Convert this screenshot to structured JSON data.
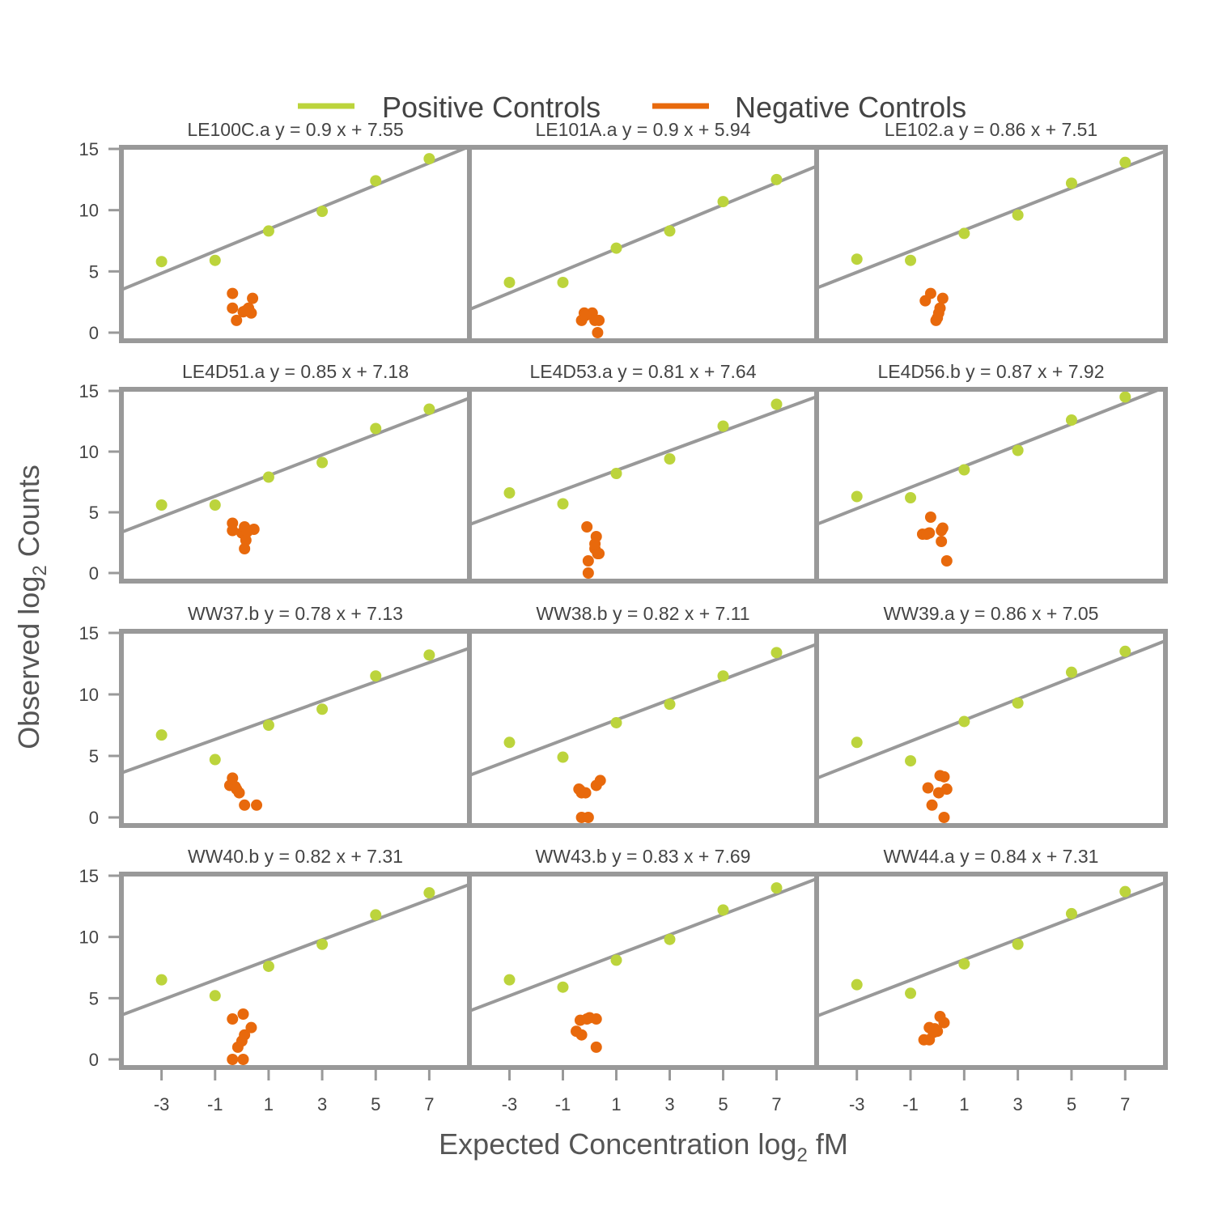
{
  "legend": {
    "positive_label": "Positive Controls",
    "negative_label": "Negative Controls"
  },
  "axes": {
    "xlabel_main": "Expected Concentration log",
    "xlabel_sub": "2",
    "xlabel_tail": " fM",
    "ylabel_main": "Observed log",
    "ylabel_sub": "2",
    "ylabel_tail": " Counts"
  },
  "colors": {
    "positive": "#bcd43c",
    "negative": "#e8690c",
    "line": "#999999",
    "frame": "#999999"
  },
  "chart_data": {
    "type": "scatter",
    "x_ticks": [
      -3,
      -1,
      1,
      3,
      5,
      7
    ],
    "x_tick_labels": [
      "-3",
      "-1",
      "1",
      "3",
      "5",
      "7"
    ],
    "y_ticks": [
      0,
      5,
      10,
      15
    ],
    "y_tick_labels": [
      "0",
      "5",
      "10",
      "15"
    ],
    "xlim": [
      -4.5,
      8.5
    ],
    "ylim": [
      -0.5,
      15
    ],
    "grid": false,
    "legend_position": "top",
    "positive_x": [
      -3,
      -1,
      1,
      3,
      5,
      7
    ],
    "panels": [
      {
        "title": "LE100C.a y = 0.9 x + 7.55",
        "slope": 0.9,
        "intercept": 7.55,
        "positive": [
          5.8,
          5.9,
          8.3,
          9.9,
          12.4,
          14.2
        ],
        "negative": [
          [
            -0.35,
            3.2
          ],
          [
            -0.35,
            2.0
          ],
          [
            -0.2,
            1.0
          ],
          [
            0.05,
            1.7
          ],
          [
            0.25,
            2.0
          ],
          [
            0.35,
            1.6
          ],
          [
            0.4,
            2.8
          ],
          [
            0.15,
            1.8
          ]
        ]
      },
      {
        "title": "LE101A.a y = 0.9 x + 5.94",
        "slope": 0.9,
        "intercept": 5.94,
        "positive": [
          4.1,
          4.1,
          6.9,
          8.3,
          10.7,
          12.5
        ],
        "negative": [
          [
            -0.3,
            1.0
          ],
          [
            -0.2,
            1.6
          ],
          [
            0.1,
            1.6
          ],
          [
            0.2,
            1.0
          ],
          [
            0.35,
            1.0
          ],
          [
            0.3,
            0.0
          ],
          [
            -0.15,
            1.4
          ]
        ]
      },
      {
        "title": "LE102.a y = 0.86 x + 7.51",
        "slope": 0.86,
        "intercept": 7.51,
        "positive": [
          6.0,
          5.9,
          8.1,
          9.6,
          12.2,
          13.9
        ],
        "negative": [
          [
            -0.45,
            2.6
          ],
          [
            -0.25,
            3.2
          ],
          [
            -0.05,
            1.0
          ],
          [
            0.05,
            1.6
          ],
          [
            0.1,
            2.0
          ],
          [
            0.2,
            2.8
          ],
          [
            0.0,
            1.2
          ]
        ]
      },
      {
        "title": "LE4D51.a y = 0.85 x + 7.18",
        "slope": 0.85,
        "intercept": 7.18,
        "positive": [
          5.6,
          5.6,
          7.9,
          9.1,
          11.9,
          13.5
        ],
        "negative": [
          [
            -0.35,
            4.1
          ],
          [
            -0.35,
            3.5
          ],
          [
            0.0,
            3.3
          ],
          [
            0.1,
            3.8
          ],
          [
            0.15,
            2.7
          ],
          [
            0.1,
            2.0
          ],
          [
            0.45,
            3.6
          ],
          [
            0.2,
            3.4
          ]
        ]
      },
      {
        "title": "LE4D53.a y = 0.81 x + 7.64",
        "slope": 0.81,
        "intercept": 7.64,
        "positive": [
          6.6,
          5.7,
          8.2,
          9.4,
          12.1,
          13.9
        ],
        "negative": [
          [
            -0.1,
            3.8
          ],
          [
            -0.05,
            1.0
          ],
          [
            -0.05,
            0.0
          ],
          [
            0.2,
            2.0
          ],
          [
            0.25,
            3.0
          ],
          [
            0.3,
            1.6
          ],
          [
            0.35,
            1.6
          ],
          [
            0.2,
            2.4
          ]
        ]
      },
      {
        "title": "LE4D56.b y = 0.87 x + 7.92",
        "slope": 0.87,
        "intercept": 7.92,
        "positive": [
          6.3,
          6.2,
          8.5,
          10.1,
          12.6,
          14.5
        ],
        "negative": [
          [
            -0.55,
            3.2
          ],
          [
            -0.3,
            3.3
          ],
          [
            -0.4,
            3.2
          ],
          [
            -0.25,
            4.6
          ],
          [
            0.15,
            3.5
          ],
          [
            0.2,
            3.7
          ],
          [
            0.15,
            2.6
          ],
          [
            0.35,
            1.0
          ]
        ]
      },
      {
        "title": "WW37.b y = 0.78 x + 7.13",
        "slope": 0.78,
        "intercept": 7.13,
        "positive": [
          6.7,
          4.7,
          7.5,
          8.8,
          11.5,
          13.2
        ],
        "negative": [
          [
            -0.45,
            2.6
          ],
          [
            -0.35,
            3.2
          ],
          [
            -0.25,
            2.5
          ],
          [
            -0.1,
            2.0
          ],
          [
            0.1,
            1.0
          ],
          [
            0.55,
            1.0
          ],
          [
            -0.2,
            2.3
          ]
        ]
      },
      {
        "title": "WW38.b y = 0.82 x + 7.11",
        "slope": 0.82,
        "intercept": 7.11,
        "positive": [
          6.1,
          4.9,
          7.7,
          9.2,
          11.5,
          13.4
        ],
        "negative": [
          [
            -0.4,
            2.3
          ],
          [
            -0.3,
            2.0
          ],
          [
            -0.15,
            2.0
          ],
          [
            -0.3,
            0.0
          ],
          [
            -0.05,
            0.0
          ],
          [
            0.25,
            2.6
          ],
          [
            0.4,
            3.0
          ],
          [
            -0.35,
            2.2
          ]
        ]
      },
      {
        "title": "WW39.a y = 0.86 x + 7.05",
        "slope": 0.86,
        "intercept": 7.05,
        "positive": [
          6.1,
          4.6,
          7.8,
          9.3,
          11.8,
          13.5
        ],
        "negative": [
          [
            -0.35,
            2.4
          ],
          [
            -0.2,
            1.0
          ],
          [
            0.05,
            2.0
          ],
          [
            0.1,
            3.4
          ],
          [
            0.25,
            3.3
          ],
          [
            0.35,
            2.3
          ],
          [
            0.25,
            0.0
          ]
        ]
      },
      {
        "title": "WW40.b y = 0.82 x + 7.31",
        "slope": 0.82,
        "intercept": 7.31,
        "positive": [
          6.5,
          5.2,
          7.6,
          9.4,
          11.8,
          13.6
        ],
        "negative": [
          [
            -0.35,
            3.3
          ],
          [
            -0.35,
            0.0
          ],
          [
            -0.15,
            1.0
          ],
          [
            0.0,
            1.5
          ],
          [
            0.1,
            2.0
          ],
          [
            0.05,
            3.7
          ],
          [
            0.35,
            2.6
          ],
          [
            0.05,
            0.0
          ]
        ]
      },
      {
        "title": "WW43.b y = 0.83 x + 7.69",
        "slope": 0.83,
        "intercept": 7.69,
        "positive": [
          6.5,
          5.9,
          8.1,
          9.8,
          12.2,
          14.0
        ],
        "negative": [
          [
            -0.5,
            2.3
          ],
          [
            -0.35,
            3.2
          ],
          [
            -0.3,
            2.0
          ],
          [
            0.0,
            3.4
          ],
          [
            0.25,
            3.3
          ],
          [
            0.25,
            1.0
          ],
          [
            -0.1,
            3.3
          ]
        ]
      },
      {
        "title": "WW44.a y = 0.84 x + 7.31",
        "slope": 0.84,
        "intercept": 7.31,
        "positive": [
          6.1,
          5.4,
          7.8,
          9.4,
          11.9,
          13.7
        ],
        "negative": [
          [
            -0.5,
            1.6
          ],
          [
            -0.3,
            2.6
          ],
          [
            -0.3,
            1.6
          ],
          [
            -0.1,
            2.5
          ],
          [
            0.0,
            2.3
          ],
          [
            0.1,
            3.5
          ],
          [
            0.25,
            3.0
          ],
          [
            -0.15,
            2.2
          ]
        ]
      }
    ]
  }
}
